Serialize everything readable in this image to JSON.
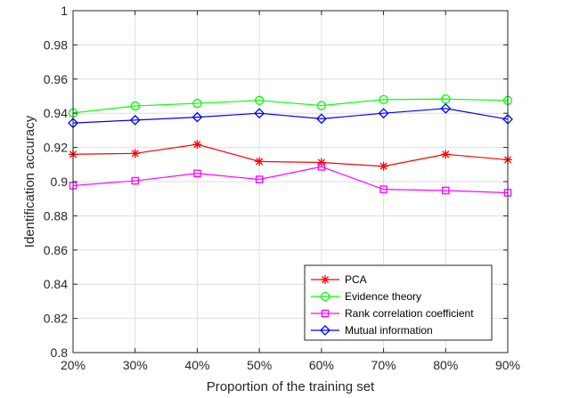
{
  "chart_data": {
    "type": "line",
    "title": "",
    "xlabel": "Proportion of the training set",
    "ylabel": "Identification accuracy",
    "categories": [
      "20%",
      "30%",
      "40%",
      "50%",
      "60%",
      "70%",
      "80%",
      "90%"
    ],
    "ylim": [
      0.8,
      1.0
    ],
    "yticks": [
      0.8,
      0.82,
      0.84,
      0.86,
      0.88,
      0.9,
      0.92,
      0.94,
      0.96,
      0.98,
      1
    ],
    "ytick_labels": [
      "0.8",
      "0.82",
      "0.84",
      "0.86",
      "0.88",
      "0.9",
      "0.92",
      "0.94",
      "0.96",
      "0.98",
      "1"
    ],
    "grid": true,
    "legend_position": "bottom-right",
    "series": [
      {
        "name": "PCA",
        "marker": "asterisk",
        "color": "#ff0000",
        "values": [
          0.916,
          0.9165,
          0.9218,
          0.9118,
          0.9112,
          0.909,
          0.916,
          0.9128
        ]
      },
      {
        "name": "Evidence theory",
        "marker": "circle",
        "color": "#00ff00",
        "values": [
          0.9402,
          0.9443,
          0.9458,
          0.9475,
          0.9445,
          0.948,
          0.9483,
          0.9475
        ]
      },
      {
        "name": "Rank correlation coefficient",
        "marker": "square",
        "color": "#ff00ff",
        "values": [
          0.8977,
          0.9005,
          0.9048,
          0.9013,
          0.9087,
          0.8955,
          0.8948,
          0.8935
        ]
      },
      {
        "name": "Mutual information",
        "marker": "diamond",
        "color": "#0000ff",
        "values": [
          0.9343,
          0.936,
          0.9377,
          0.94,
          0.9368,
          0.94,
          0.9428,
          0.9365
        ]
      }
    ]
  }
}
